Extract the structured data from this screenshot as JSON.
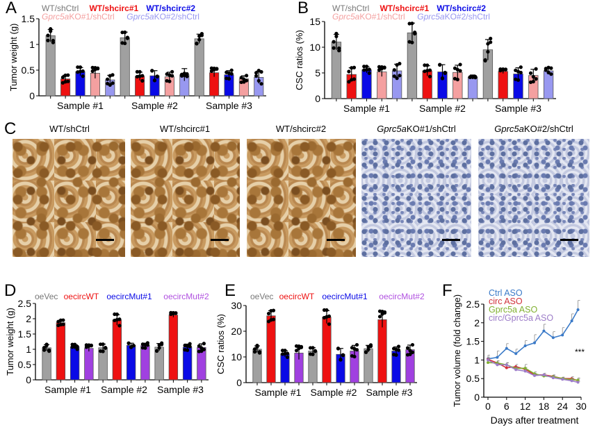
{
  "panels": {
    "a": "A",
    "b": "B",
    "c": "C",
    "d": "D",
    "e": "E",
    "f": "F"
  },
  "ihc": {
    "titles": [
      "WT/shCtrl",
      "WT/shcirc#1",
      "WT/shcirc#2",
      "Gprc5a",
      "KO#1/shCtrl",
      "Gprc5a",
      "KO#2/shCtrl"
    ]
  },
  "chart_data": [
    {
      "id": "A",
      "type": "bar",
      "ylabel": "Tumor weight (g)",
      "ylim": [
        0,
        1.5
      ],
      "yticks": [
        "0",
        "0.5",
        "1",
        "1.5"
      ],
      "categories": [
        "Sample #1",
        "Sample #2",
        "Sample #3"
      ],
      "legend": [
        "WT/shCtrl",
        "WT/shcirc#1",
        "WT/shcirc#2",
        "Gprc5aKO#1/shCtrl",
        "Gprc5aKO#2/shCtrl"
      ],
      "colors": [
        "#a0a0a0",
        "#ee1111",
        "#0a0ae6",
        "#f4a0a0",
        "#9898f0"
      ],
      "series": [
        {
          "name": "WT/shCtrl",
          "values": [
            1.17,
            1.13,
            1.11
          ],
          "err": [
            0.12,
            0.11,
            0.09
          ]
        },
        {
          "name": "WT/shcirc#1",
          "values": [
            0.33,
            0.38,
            0.45
          ],
          "err": [
            0.07,
            0.08,
            0.08
          ]
        },
        {
          "name": "WT/shcirc#2",
          "values": [
            0.47,
            0.39,
            0.41
          ],
          "err": [
            0.08,
            0.1,
            0.08
          ]
        },
        {
          "name": "Gprc5aKO#1/shCtrl",
          "values": [
            0.44,
            0.37,
            0.33
          ],
          "err": [
            0.1,
            0.09,
            0.06
          ]
        },
        {
          "name": "Gprc5aKO#2/shCtrl",
          "values": [
            0.31,
            0.41,
            0.36
          ],
          "err": [
            0.09,
            0.12,
            0.12
          ]
        }
      ]
    },
    {
      "id": "B",
      "type": "bar",
      "ylabel": "CSC ratios (%)",
      "ylim": [
        0,
        15
      ],
      "yticks": [
        "0",
        "5",
        "10",
        "15"
      ],
      "categories": [
        "Sample #1",
        "Sample #2",
        "Sample #3"
      ],
      "legend": [
        "WT/shCtrl",
        "WT/shcirc#1",
        "WT/shcirc#2",
        "Gprc5aKO#1/shCtrl",
        "Gprc5aKO#2/shCtrl"
      ],
      "colors": [
        "#a0a0a0",
        "#ee1111",
        "#0a0ae6",
        "#f4a0a0",
        "#9898f0"
      ],
      "series": [
        {
          "name": "WT/shCtrl",
          "values": [
            11.0,
            12.8,
            9.5
          ],
          "err": [
            1.5,
            1.9,
            2.0
          ]
        },
        {
          "name": "WT/shcirc#1",
          "values": [
            4.7,
            5.4,
            5.3
          ],
          "err": [
            1.3,
            1.0,
            0.4
          ]
        },
        {
          "name": "WT/shcirc#2",
          "values": [
            5.6,
            5.2,
            4.8
          ],
          "err": [
            0.6,
            1.4,
            1.2
          ]
        },
        {
          "name": "Gprc5aKO#1/shCtrl",
          "values": [
            5.2,
            5.1,
            4.5
          ],
          "err": [
            0.9,
            1.4,
            1.2
          ]
        },
        {
          "name": "Gprc5aKO#2/shCtrl",
          "values": [
            5.4,
            4.2,
            5.4
          ],
          "err": [
            1.3,
            0.4,
            0.6
          ]
        }
      ]
    },
    {
      "id": "D",
      "type": "bar",
      "ylabel": "Tumor weight (g)",
      "ylim": [
        0,
        2.5
      ],
      "yticks": [
        "0",
        "0.5",
        "1",
        "1.5",
        "2",
        "2.5"
      ],
      "categories": [
        "Sample #1",
        "Sample #2",
        "Sample #3"
      ],
      "legend": [
        "oeVec",
        "oecircWT",
        "oecircMut#1",
        "oecircMut#2"
      ],
      "colors": [
        "#a0a0a0",
        "#ee1111",
        "#0a0ae6",
        "#a040e0"
      ],
      "series": [
        {
          "name": "oeVec",
          "values": [
            1.05,
            1.05,
            1.07
          ],
          "err": [
            0.1,
            0.12,
            0.12
          ]
        },
        {
          "name": "oecircWT",
          "values": [
            1.87,
            1.96,
            2.12
          ],
          "err": [
            0.08,
            0.17,
            0.07
          ]
        },
        {
          "name": "oecircMut#1",
          "values": [
            1.08,
            1.13,
            1.07
          ],
          "err": [
            0.07,
            0.07,
            0.1
          ]
        },
        {
          "name": "oecircMut#2",
          "values": [
            1.03,
            1.12,
            1.06
          ],
          "err": [
            0.1,
            0.08,
            0.12
          ]
        }
      ]
    },
    {
      "id": "E",
      "type": "bar",
      "ylabel": "CSC ratios (%)",
      "ylim": [
        0,
        30
      ],
      "yticks": [
        "0",
        "10",
        "20",
        "30"
      ],
      "categories": [
        "Sample #1",
        "Sample #2",
        "Sample #3"
      ],
      "legend": [
        "oeVec",
        "oecircWT",
        "oecircMut#1",
        "oecircMut#2"
      ],
      "colors": [
        "#a0a0a0",
        "#ee1111",
        "#0a0ae6",
        "#a040e0"
      ],
      "series": [
        {
          "name": "oeVec",
          "values": [
            13.0,
            12.3,
            13.2
          ],
          "err": [
            1.3,
            1.3,
            1.3
          ]
        },
        {
          "name": "oecircWT",
          "values": [
            26.0,
            25.5,
            24.5
          ],
          "err": [
            2.0,
            2.5,
            3.0
          ]
        },
        {
          "name": "oecircMut#1",
          "values": [
            11.2,
            11.0,
            12.3
          ],
          "err": [
            1.2,
            2.3,
            1.6
          ]
        },
        {
          "name": "oecircMut#2",
          "values": [
            11.5,
            12.3,
            12.8
          ],
          "err": [
            2.5,
            2.2,
            1.8
          ]
        }
      ]
    },
    {
      "id": "F",
      "type": "line",
      "xlabel": "Days after treatment",
      "ylabel": "Tumor volume (fold change)",
      "xlim": [
        0,
        30
      ],
      "ylim": [
        0,
        2.5
      ],
      "xticks": [
        "0",
        "6",
        "12",
        "18",
        "24",
        "30"
      ],
      "yticks": [
        "0",
        "0.5",
        "1",
        "1.5",
        "2",
        "2.5"
      ],
      "annotation": "***",
      "x": [
        0,
        3,
        6,
        9,
        12,
        15,
        18,
        21,
        24,
        27,
        29
      ],
      "series": [
        {
          "name": "Ctrl ASO",
          "color": "#3a7ac8",
          "values": [
            1.03,
            1.07,
            1.31,
            1.17,
            1.38,
            1.46,
            1.78,
            1.6,
            1.67,
            2.05,
            2.35
          ],
          "err": [
            0.1,
            0.17,
            0.13,
            0.12,
            0.14,
            0.22,
            0.18,
            0.16,
            0.2,
            0.19,
            0.25
          ]
        },
        {
          "name": "circ ASO",
          "color": "#d0303a",
          "values": [
            1.02,
            0.92,
            0.79,
            0.82,
            0.75,
            0.6,
            0.6,
            0.56,
            0.5,
            0.5,
            0.44
          ],
          "err": [
            0.06,
            0.06,
            0.05,
            0.06,
            0.05,
            0.04,
            0.04,
            0.04,
            0.03,
            0.05,
            0.05
          ]
        },
        {
          "name": "Gprc5a ASO",
          "color": "#80b030",
          "values": [
            0.93,
            0.92,
            0.87,
            0.77,
            0.78,
            0.63,
            0.57,
            0.55,
            0.5,
            0.47,
            0.46
          ],
          "err": [
            0.05,
            0.05,
            0.06,
            0.05,
            0.1,
            0.05,
            0.04,
            0.04,
            0.04,
            0.04,
            0.06
          ]
        },
        {
          "name": "circ/Gprc5a ASO",
          "color": "#9c7cc8",
          "values": [
            1.0,
            0.87,
            0.87,
            0.74,
            0.7,
            0.58,
            0.6,
            0.52,
            0.48,
            0.44,
            0.4
          ],
          "err": [
            0.05,
            0.05,
            0.05,
            0.04,
            0.04,
            0.04,
            0.04,
            0.04,
            0.03,
            0.03,
            0.03
          ]
        }
      ]
    }
  ]
}
